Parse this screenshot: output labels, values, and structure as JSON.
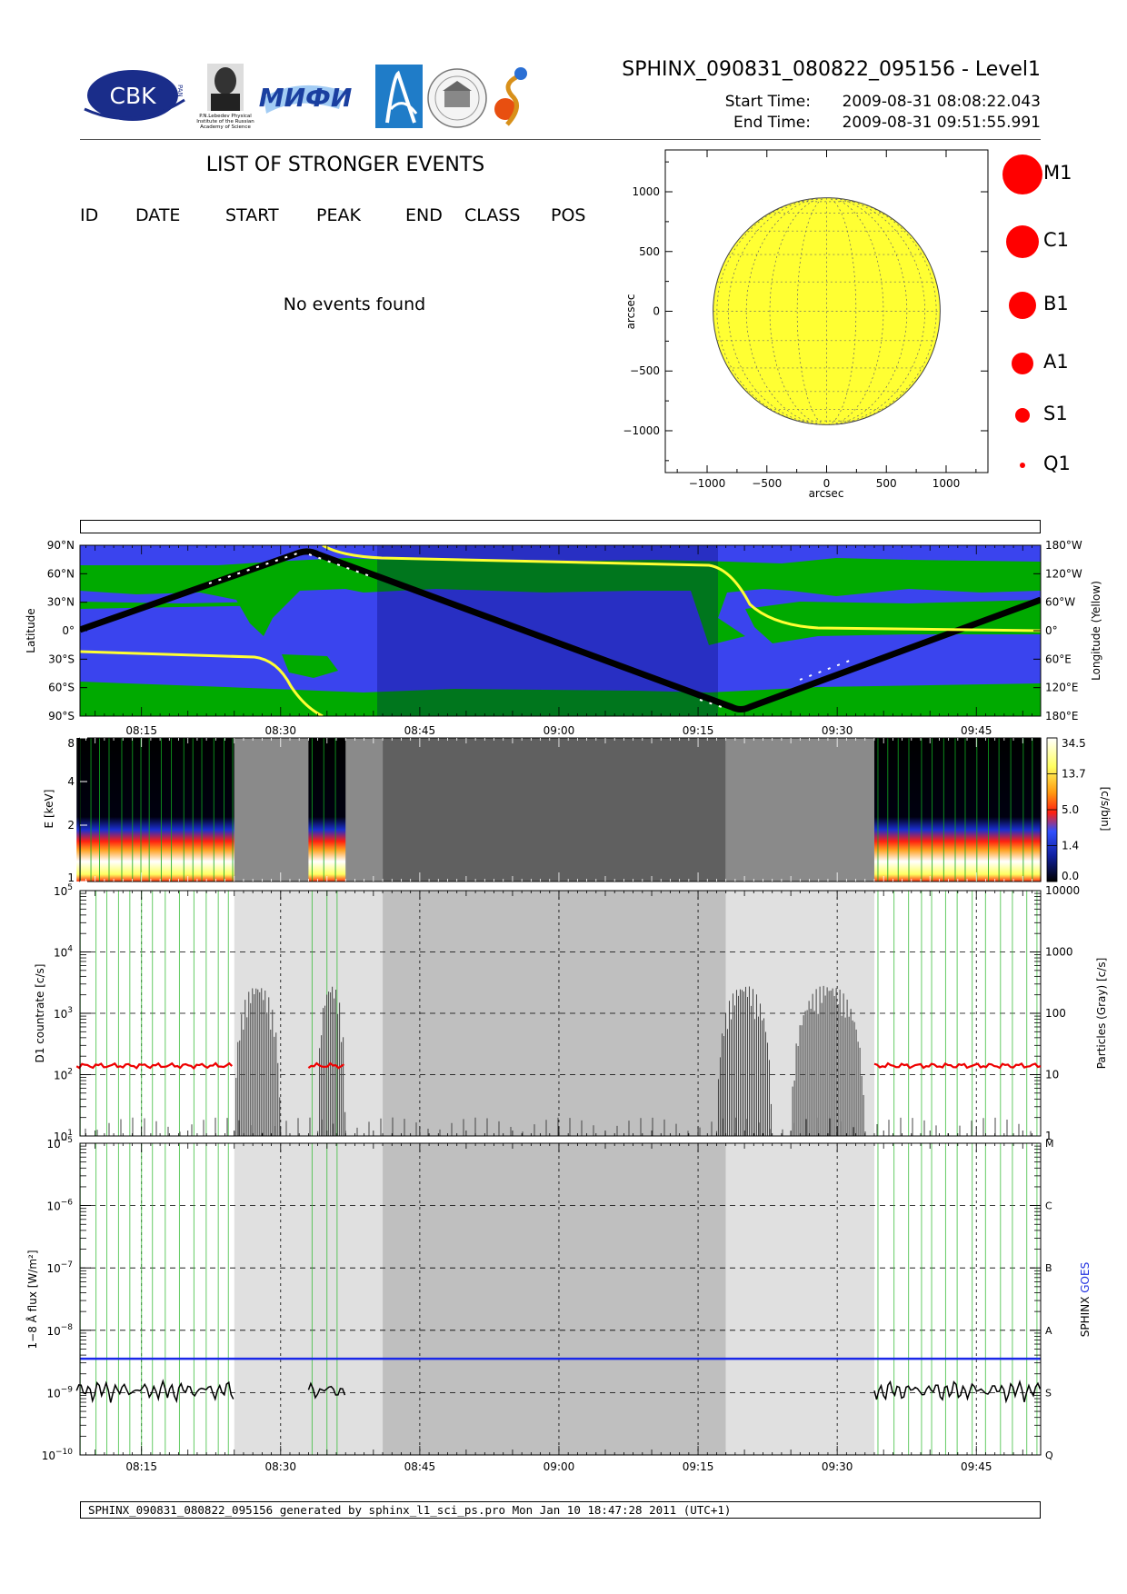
{
  "header": {
    "title": "SPHINX_090831_080822_095156 - Level1",
    "start_label": "Start Time:",
    "start_value": "2009-08-31   08:08:22.043",
    "end_label": "End Time:",
    "end_value": "2009-08-31   09:51:55.991",
    "logos": {
      "cbk": "CBK",
      "cbk_pan": "PAN",
      "lebedev": "P.N.Lebedev Physical Institute of the Russian Academy of Science",
      "mifi": "МИФИ",
      "pan_seal": "PANSTWOWA AKADEMIA"
    }
  },
  "events": {
    "title": "LIST OF STRONGER EVENTS",
    "columns": [
      "ID",
      "DATE",
      "START",
      "PEAK",
      "END",
      "CLASS",
      "POS"
    ],
    "empty_message": "No events found"
  },
  "sun_map": {
    "xlabel": "arcsec",
    "ylabel": "arcsec",
    "xticks": [
      "-1000",
      "-500",
      "0",
      "500",
      "1000"
    ],
    "yticks": [
      "1000",
      "500",
      "0",
      "-500",
      "-1000"
    ],
    "disk_color": "#ffff33",
    "flare_legend": [
      "M1",
      "C1",
      "B1",
      "A1",
      "S1",
      "Q1"
    ],
    "legend_color": "#ff0000"
  },
  "time_axis": {
    "ticks": [
      "08:15",
      "08:30",
      "08:45",
      "09:00",
      "09:15",
      "09:30",
      "09:45"
    ],
    "range": [
      "08:08:22",
      "09:51:56"
    ]
  },
  "orbit_panel": {
    "ylabel": "Latitude",
    "ylabel_right": "Longitude (Yellow)",
    "lat_ticks": [
      "90°N",
      "60°N",
      "30°N",
      "0°",
      "30°S",
      "60°S",
      "90°S"
    ],
    "lon_ticks": [
      "180°W",
      "120°W",
      "60°W",
      "0°",
      "60°E",
      "120°E",
      "180°E"
    ],
    "colors": {
      "ocean": "#3a44ee",
      "land": "#00aa00",
      "track": "#000000",
      "longitude": "#ffff33"
    }
  },
  "spectrogram_panel": {
    "ylabel": "E [keV]",
    "yticks": [
      "8",
      "4",
      "2",
      "1"
    ],
    "colorbar_label": "[c/s/bin]",
    "colorbar_ticks": [
      "34.5",
      "13.7",
      "5.0",
      "1.4",
      "0.0"
    ]
  },
  "countrate_panel": {
    "ylabel": "D1 countrate [c/s]",
    "ylabel_right": "Particles (Gray) [c/s]",
    "left_ticks": [
      {
        "base": "10",
        "exp": "5"
      },
      {
        "base": "10",
        "exp": "4"
      },
      {
        "base": "10",
        "exp": "3"
      },
      {
        "base": "10",
        "exp": "2"
      },
      {
        "base": "10",
        "exp": "1"
      }
    ],
    "right_ticks": [
      "10000",
      "1000",
      "100",
      "10",
      "1"
    ]
  },
  "flux_panel": {
    "ylabel": "1−8 Å flux [W/m²]",
    "ylabel_right_sphinx": "SPHINX",
    "ylabel_right_goes": "GOES",
    "left_ticks": [
      {
        "base": "10",
        "exp": "-5"
      },
      {
        "base": "10",
        "exp": "-6"
      },
      {
        "base": "10",
        "exp": "-7"
      },
      {
        "base": "10",
        "exp": "-8"
      },
      {
        "base": "10",
        "exp": "-9"
      },
      {
        "base": "10",
        "exp": "-10"
      }
    ],
    "class_ticks": [
      "M",
      "C",
      "B",
      "A",
      "S",
      "Q"
    ]
  },
  "footer": "SPHINX_090831_080822_095156 generated by sphinx_l1_sci_ps.pro Mon Jan 10 18:47:28 2011 (UTC+1)",
  "chart_data": [
    {
      "type": "scatter",
      "title": "",
      "xlabel": "arcsec",
      "ylabel": "arcsec",
      "xlim": [
        -1350,
        1350
      ],
      "ylim": [
        -1350,
        1350
      ],
      "solar_disk_radius_arcsec": 950,
      "grid": true,
      "series": []
    },
    {
      "type": "line",
      "ylabel": "Latitude",
      "y2label": "Longitude (Yellow)",
      "x": [
        "08:08",
        "08:31",
        "09:21",
        "09:52"
      ],
      "series": [
        {
          "name": "Latitude",
          "values": [
            0,
            80,
            -85,
            25
          ]
        }
      ]
    },
    {
      "type": "heatmap",
      "ylabel": "E [keV]",
      "ylim": [
        1,
        8
      ],
      "colorbar_label": "[c/s/bin]",
      "colorbar_range": [
        0.0,
        34.5
      ],
      "data_intervals": [
        [
          "08:08",
          "08:25"
        ],
        [
          "08:33",
          "08:37"
        ],
        [
          "09:34",
          "09:52"
        ]
      ],
      "shaded_intervals": [
        [
          "08:25",
          "08:41"
        ],
        [
          "08:41",
          "09:18"
        ],
        [
          "09:18",
          "09:34"
        ]
      ]
    },
    {
      "type": "line",
      "ylabel": "D1 countrate [c/s]",
      "y2label": "Particles (Gray) [c/s]",
      "ylim": [
        10,
        100000
      ],
      "log": true,
      "series": [
        {
          "values": [
            140,
            140,
            140
          ]
        },
        {
          "values": [
            1,
            300,
            1
          ]
        }
      ]
    },
    {
      "type": "line",
      "ylabel": "1−8 Å flux [W/m²]",
      "ylim": [
        1e-10,
        1e-05
      ],
      "log": true,
      "series": [
        {
          "name": "SPHINX",
          "values": [
            1.1e-09,
            1.1e-09,
            1.1e-09
          ]
        },
        {
          "name": "GOES",
          "values": [
            3.5e-09,
            3.5e-09,
            3.5e-09
          ]
        }
      ]
    }
  ]
}
